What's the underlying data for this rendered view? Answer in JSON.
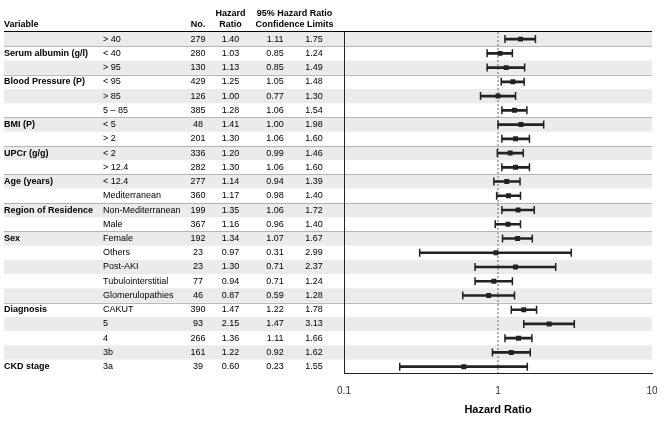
{
  "chart_data": {
    "type": "forest",
    "xlabel": "Hazard Ratio",
    "log": "x",
    "xlim": [
      0.1,
      10
    ],
    "xticks": [
      0.1,
      1,
      10
    ],
    "grid": false,
    "color": "#222222",
    "ref_line": 1.0,
    "headers": {
      "variable": "Variable",
      "n": "No.",
      "hr": "Hazard\nRatio",
      "ci": "95% Hazard Ratio\nConfidence Limits"
    },
    "groups": [
      "CKD stage",
      null,
      null,
      null,
      "Diagnosis",
      null,
      null,
      null,
      null,
      "Sex",
      null,
      "Region of Residence",
      null,
      "Age (years)",
      null,
      "UPCr (g/g)",
      null,
      "BMI (P)",
      null,
      null,
      "Blood Pressure (P)",
      null,
      "Serum albumin (g/l)",
      null
    ],
    "categories": [
      "3a",
      "3b",
      "4",
      "5",
      "CAKUT",
      "Glomerulopathies",
      "Tubulointerstitial",
      "Post-AKI",
      "Others",
      "Female",
      "Male",
      "Non-Mediterranean",
      "Mediterranean",
      "< 12.4",
      "> 12.4",
      "< 2",
      "> 2",
      "< 5",
      "5 – 85",
      "> 85",
      "< 95",
      "> 95",
      "< 40",
      "> 40"
    ],
    "n": [
      39,
      161,
      266,
      93,
      390,
      46,
      77,
      23,
      23,
      192,
      367,
      199,
      360,
      277,
      282,
      336,
      201,
      48,
      385,
      126,
      429,
      130,
      280,
      279
    ],
    "values": [
      0.6,
      1.22,
      1.36,
      2.15,
      1.47,
      0.87,
      0.94,
      1.3,
      0.97,
      1.34,
      1.16,
      1.35,
      1.17,
      1.14,
      1.3,
      1.2,
      1.3,
      1.41,
      1.28,
      1.0,
      1.25,
      1.13,
      1.03,
      1.4
    ],
    "value_labels": [
      "0.60",
      "1.22",
      "1.36",
      "2.15",
      "1.47",
      "0.87",
      "0.94",
      "1.30",
      "0.97",
      "1.34",
      "1.16",
      "1.35",
      "1.17",
      "1.14",
      "1.30",
      "1.20",
      "1.30",
      "1.41",
      "1.28",
      "1.00",
      "1.25",
      "1.13",
      "1.03",
      "1.40"
    ],
    "lo": [
      0.23,
      0.92,
      1.11,
      1.47,
      1.22,
      0.59,
      0.71,
      0.71,
      0.31,
      1.07,
      0.96,
      1.06,
      0.98,
      0.94,
      1.06,
      0.99,
      1.06,
      1.0,
      1.06,
      0.77,
      1.05,
      0.85,
      0.85,
      1.11
    ],
    "lo_labels": [
      "0.23",
      "0.92",
      "1.11",
      "1.47",
      "1.22",
      "0.59",
      "0.71",
      "0.71",
      "0.31",
      "1.07",
      "0.96",
      "1.06",
      "0.98",
      "0.94",
      "1.06",
      "0.99",
      "1.06",
      "1.00",
      "1.06",
      "0.77",
      "1.05",
      "0.85",
      "0.85",
      "1.11"
    ],
    "hi": [
      1.55,
      1.62,
      1.66,
      3.13,
      1.78,
      1.28,
      1.24,
      2.37,
      2.99,
      1.67,
      1.4,
      1.72,
      1.4,
      1.39,
      1.6,
      1.46,
      1.6,
      1.98,
      1.54,
      1.3,
      1.48,
      1.49,
      1.24,
      1.75
    ],
    "hi_labels": [
      "1.55",
      "1.62",
      "1.66",
      "3.13",
      "1.78",
      "1.28",
      "1.24",
      "2.37",
      "2.99",
      "1.67",
      "1.40",
      "1.72",
      "1.40",
      "1.39",
      "1.60",
      "1.46",
      "1.60",
      "1.98",
      "1.54",
      "1.30",
      "1.48",
      "1.49",
      "1.24",
      "1.75"
    ]
  }
}
